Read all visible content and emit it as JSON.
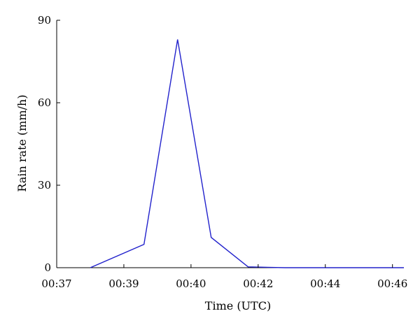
{
  "chart_data": {
    "type": "line",
    "title": "",
    "xlabel": "Time (UTC)",
    "ylabel": "Rain rate (mm/h)",
    "ylim": [
      0,
      90
    ],
    "yticks": [
      0,
      30,
      60,
      90
    ],
    "xticks": [
      {
        "label": "00:37",
        "pos": 0
      },
      {
        "label": "00:39",
        "pos": 1
      },
      {
        "label": "00:40",
        "pos": 2
      },
      {
        "label": "00:42",
        "pos": 3
      },
      {
        "label": "00:44",
        "pos": 4
      },
      {
        "label": "00:46",
        "pos": 5
      }
    ],
    "xlim": [
      0,
      5.17
    ],
    "grid": false,
    "series": [
      {
        "color": "#2222cc",
        "points": [
          {
            "x": 0.5,
            "y": 0
          },
          {
            "x": 1.3,
            "y": 8.5
          },
          {
            "x": 1.8,
            "y": 83
          },
          {
            "x": 2.3,
            "y": 11
          },
          {
            "x": 2.85,
            "y": 0.3
          },
          {
            "x": 3.4,
            "y": 0
          },
          {
            "x": 5.17,
            "y": 0
          }
        ]
      }
    ]
  }
}
